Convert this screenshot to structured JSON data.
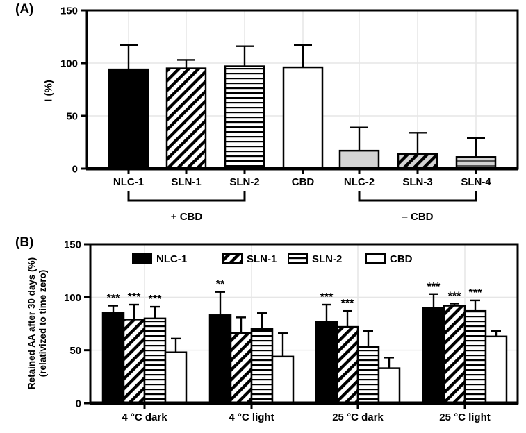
{
  "figure": {
    "panel_a_label": "(A)",
    "panel_b_label": "(B)"
  },
  "colors": {
    "bar_black": "#000000",
    "bar_white": "#ffffff",
    "bar_gray": "#d4d4d4",
    "axis": "#000000",
    "grid": "#e6e6e6",
    "text": "#000000"
  },
  "chart_data": [
    {
      "id": "A",
      "type": "bar",
      "title": "",
      "ylabel": "I (%)",
      "xlabel": "",
      "ylim": [
        0,
        150
      ],
      "yticks": [
        0,
        50,
        100,
        150
      ],
      "grid": "on",
      "categories": [
        "NLC-1",
        "SLN-1",
        "SLN-2",
        "CBD",
        "NLC-2",
        "SLN-3",
        "SLN-4"
      ],
      "values": [
        94,
        95,
        97,
        96,
        17,
        14,
        11
      ],
      "errors_plus": [
        23,
        8,
        19,
        21,
        22,
        20,
        18
      ],
      "bar_styles": [
        "black-solid",
        "white-diagonal",
        "white-hlines",
        "white-solid",
        "gray-solid",
        "gray-diagonal",
        "gray-hlines"
      ],
      "group_brackets": [
        {
          "from": 0,
          "to": 2,
          "label": "+ CBD"
        },
        {
          "from": 4,
          "to": 6,
          "label": "– CBD"
        }
      ]
    },
    {
      "id": "B",
      "type": "grouped-bar",
      "title": "",
      "ylabel_line1": "Retained AA after 30 days (%)",
      "ylabel_line2": "(relativized to time zero)",
      "xlabel": "",
      "ylim": [
        0,
        150
      ],
      "yticks": [
        0,
        50,
        100,
        150
      ],
      "grid": "on",
      "legend_position": "top-inside",
      "categories": [
        "4 °C dark",
        "4 °C light",
        "25 °C dark",
        "25 °C light"
      ],
      "series": [
        {
          "name": "NLC-1",
          "style": "black-solid",
          "values": [
            85,
            83,
            77,
            90
          ],
          "errors_plus": [
            7,
            22,
            16,
            13
          ],
          "significance": [
            "***",
            "**",
            "***",
            "***"
          ]
        },
        {
          "name": "SLN-1",
          "style": "white-diagonal",
          "values": [
            79,
            66,
            72,
            92
          ],
          "errors_plus": [
            14,
            15,
            15,
            2
          ],
          "significance": [
            "***",
            "",
            "***",
            "***"
          ]
        },
        {
          "name": "SLN-2",
          "style": "white-hlines",
          "values": [
            80,
            70,
            53,
            87
          ],
          "errors_plus": [
            11,
            15,
            15,
            10
          ],
          "significance": [
            "***",
            "",
            "",
            "***"
          ]
        },
        {
          "name": "CBD",
          "style": "white-solid",
          "values": [
            48,
            44,
            33,
            63
          ],
          "errors_plus": [
            13,
            22,
            10,
            5
          ],
          "significance": [
            "",
            "",
            "",
            ""
          ]
        }
      ]
    }
  ]
}
